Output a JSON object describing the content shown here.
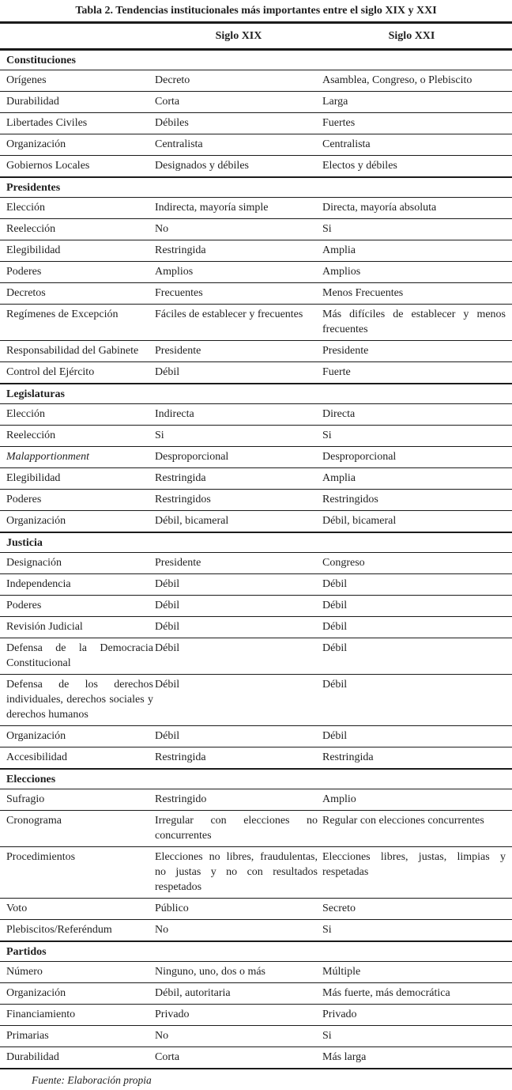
{
  "page": {
    "title": "Tabla 2. Tendencias institucionales más importantes entre el siglo XIX y XXI",
    "source_note": "Fuente: Elaboración propia"
  },
  "table": {
    "column_headers": [
      "Siglo XIX",
      "Siglo XXI"
    ],
    "sections": [
      {
        "name": "Constituciones",
        "rows": [
          {
            "label": "Orígenes",
            "xix": "Decreto",
            "xxi": "Asamblea, Congreso, o Plebiscito"
          },
          {
            "label": "Durabilidad",
            "xix": "Corta",
            "xxi": "Larga"
          },
          {
            "label": "Libertades Civiles",
            "xix": "Débiles",
            "xxi": "Fuertes"
          },
          {
            "label": "Organización",
            "xix": "Centralista",
            "xxi": "Centralista"
          },
          {
            "label": "Gobiernos Locales",
            "xix": "Designados y débiles",
            "xxi": "Electos y débiles"
          }
        ]
      },
      {
        "name": "Presidentes",
        "rows": [
          {
            "label": "Elección",
            "xix": "Indirecta, mayoría simple",
            "xxi": "Directa, mayoría absoluta"
          },
          {
            "label": "Reelección",
            "xix": "No",
            "xxi": "Si"
          },
          {
            "label": "Elegibilidad",
            "xix": "Restringida",
            "xxi": "Amplia"
          },
          {
            "label": "Poderes",
            "xix": "Amplios",
            "xxi": "Amplios"
          },
          {
            "label": "Decretos",
            "xix": "Frecuentes",
            "xxi": "Menos Frecuentes"
          },
          {
            "label": "Regímenes de Excepción",
            "xix": "Fáciles de establecer y frecuentes",
            "xxi": "Más difíciles de establecer y menos frecuentes"
          },
          {
            "label": "Responsabilidad del Gabinete",
            "xix": "Presidente",
            "xxi": "Presidente"
          },
          {
            "label": "Control del Ejército",
            "xix": "Débil",
            "xxi": "Fuerte"
          }
        ]
      },
      {
        "name": "Legislaturas",
        "rows": [
          {
            "label": "Elección",
            "xix": "Indirecta",
            "xxi": "Directa"
          },
          {
            "label": "Reelección",
            "xix": "Si",
            "xxi": "Si"
          },
          {
            "label": "Malapportionment",
            "italic": true,
            "xix": "Desproporcional",
            "xxi": "Desproporcional"
          },
          {
            "label": "Elegibilidad",
            "xix": "Restringida",
            "xxi": "Amplia"
          },
          {
            "label": "Poderes",
            "xix": "Restringidos",
            "xxi": "Restringidos"
          },
          {
            "label": "Organización",
            "xix": "Débil, bicameral",
            "xxi": "Débil, bicameral"
          }
        ]
      },
      {
        "name": "Justicia",
        "rows": [
          {
            "label": "Designación",
            "xix": "Presidente",
            "xxi": "Congreso"
          },
          {
            "label": "Independencia",
            "xix": "Débil",
            "xxi": "Débil"
          },
          {
            "label": "Poderes",
            "xix": "Débil",
            "xxi": "Débil"
          },
          {
            "label": "Revisión Judicial",
            "xix": "Débil",
            "xxi": "Débil"
          },
          {
            "label": "Defensa de la Democracia Constitucional",
            "xix": "Débil",
            "xxi": "Débil"
          },
          {
            "label": "Defensa de los derechos individuales, derechos sociales y derechos humanos",
            "xix": "Débil",
            "xxi": "Débil"
          },
          {
            "label": "Organización",
            "xix": "Débil",
            "xxi": "Débil"
          },
          {
            "label": "Accesibilidad",
            "xix": "Restringida",
            "xxi": "Restringida"
          }
        ]
      },
      {
        "name": "Elecciones",
        "rows": [
          {
            "label": "Sufragio",
            "xix": "Restringido",
            "xxi": "Amplio"
          },
          {
            "label": "Cronograma",
            "xix": "Irregular con elecciones no concurrentes",
            "xxi": "Regular con elecciones concurrentes"
          },
          {
            "label": "Procedimientos",
            "xix": "Elecciones no libres, fraudulentas, no justas y no con resultados respetados",
            "xxi": "Elecciones libres, justas, limpias y respetadas"
          },
          {
            "label": "Voto",
            "xix": "Público",
            "xxi": "Secreto"
          },
          {
            "label": "Plebiscitos/Referéndum",
            "xix": "No",
            "xxi": "Si"
          }
        ]
      },
      {
        "name": "Partidos",
        "rows": [
          {
            "label": "Número",
            "xix": "Ninguno, uno, dos o más",
            "xxi": "Múltiple"
          },
          {
            "label": "Organización",
            "xix": "Débil, autoritaria",
            "xxi": "Más fuerte, más democrática"
          },
          {
            "label": "Financiamiento",
            "xix": "Privado",
            "xxi": "Privado"
          },
          {
            "label": "Primarias",
            "xix": "No",
            "xxi": "Si"
          },
          {
            "label": "Durabilidad",
            "xix": "Corta",
            "xxi": "Más larga"
          }
        ]
      }
    ]
  }
}
